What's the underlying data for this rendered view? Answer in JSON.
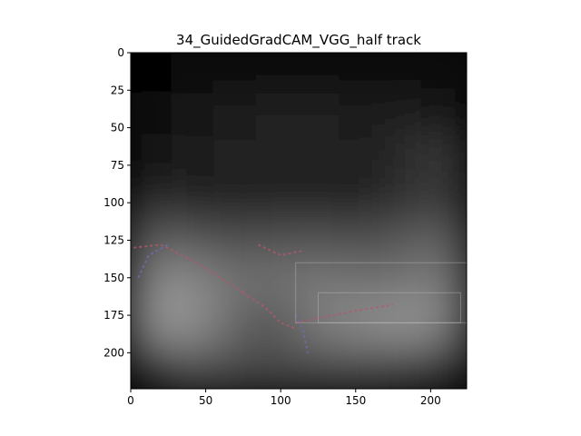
{
  "chart_data": {
    "type": "heatmap",
    "title": "34_GuidedGradCAM_VGG_half track",
    "xlabel": "",
    "ylabel": "",
    "image_size": [
      224,
      224
    ],
    "xlim": [
      0,
      224
    ],
    "ylim": [
      224,
      0
    ],
    "xticks": [
      0,
      50,
      100,
      150,
      200
    ],
    "yticks": [
      0,
      25,
      50,
      75,
      100,
      125,
      150,
      175,
      200
    ],
    "grid": false,
    "colormap": "gray",
    "intensity_grid": {
      "rows": 8,
      "cols": 8,
      "values": [
        [
          0.02,
          0.03,
          0.05,
          0.06,
          0.06,
          0.05,
          0.04,
          0.03
        ],
        [
          0.05,
          0.08,
          0.12,
          0.14,
          0.14,
          0.12,
          0.1,
          0.08
        ],
        [
          0.08,
          0.1,
          0.13,
          0.14,
          0.14,
          0.1,
          0.18,
          0.24
        ],
        [
          0.15,
          0.12,
          0.1,
          0.1,
          0.1,
          0.1,
          0.16,
          0.22
        ],
        [
          0.38,
          0.35,
          0.3,
          0.32,
          0.33,
          0.3,
          0.35,
          0.4
        ],
        [
          0.55,
          0.55,
          0.45,
          0.45,
          0.48,
          0.45,
          0.45,
          0.5
        ],
        [
          0.6,
          0.58,
          0.4,
          0.3,
          0.5,
          0.55,
          0.6,
          0.55
        ],
        [
          0.15,
          0.35,
          0.3,
          0.3,
          0.3,
          0.3,
          0.28,
          0.2
        ]
      ]
    }
  },
  "colors": {
    "background": "#ffffff",
    "axes_frame": "#000000",
    "highlight_red": "#b05a6e",
    "highlight_blue": "#6b6fb0"
  }
}
